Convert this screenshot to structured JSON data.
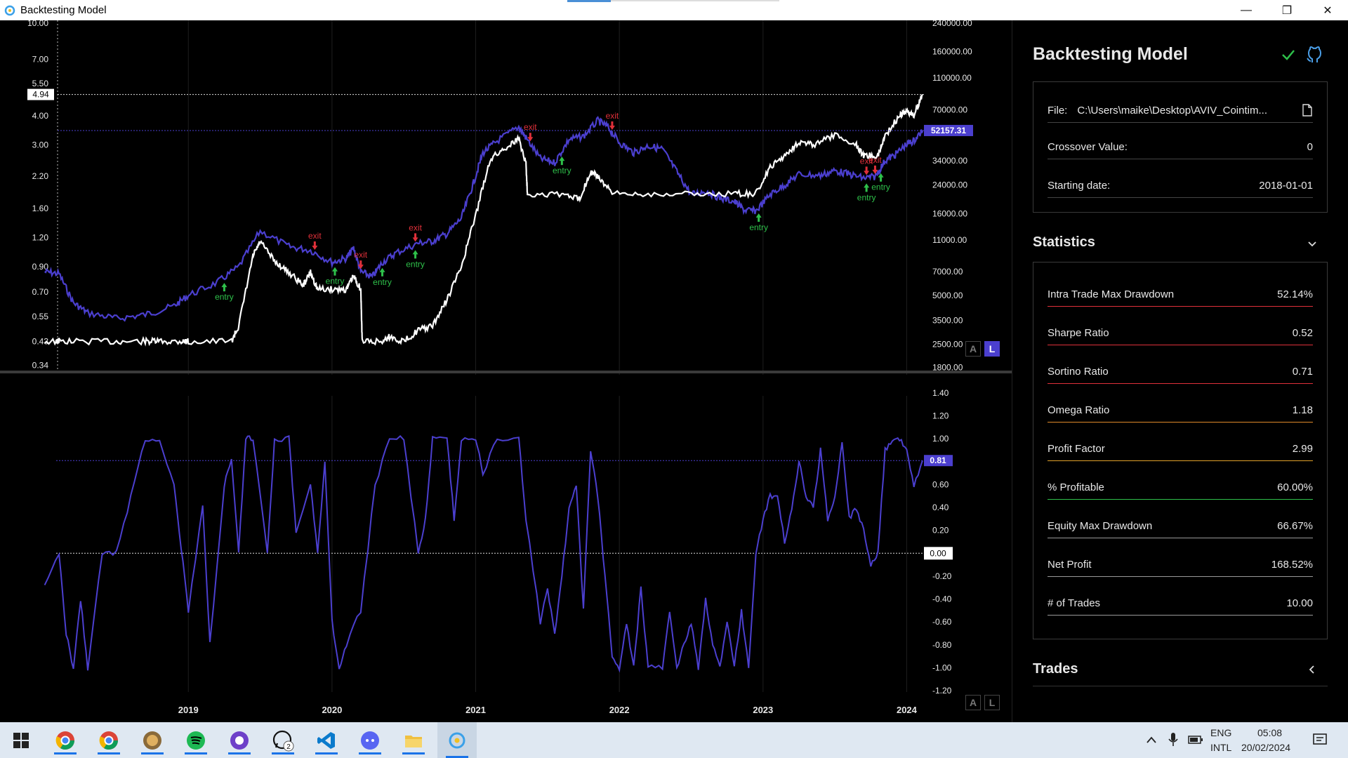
{
  "window": {
    "title": "Backtesting Model",
    "minimize": "—",
    "restore": "❐",
    "close": "✕"
  },
  "chart_data": {
    "type": "line",
    "x_ticks": [
      "2019",
      "2020",
      "2021",
      "2022",
      "2023",
      "2024"
    ],
    "top_left_axis": [
      "10.00",
      "7.00",
      "5.50",
      "4.00",
      "3.00",
      "2.20",
      "1.60",
      "1.20",
      "0.90",
      "0.70",
      "0.55",
      "0.43",
      "0.34"
    ],
    "top_left_marker": "4.94",
    "top_right_axis": [
      "240000.00",
      "160000.00",
      "110000.00",
      "70000.00",
      "34000.00",
      "24000.00",
      "16000.00",
      "11000.00",
      "7000.00",
      "5000.00",
      "3500.00",
      "2500.00",
      "1800.00"
    ],
    "top_right_marker": "52157.31",
    "bottom_axis": [
      "1.40",
      "1.20",
      "1.00",
      "0.80",
      "0.60",
      "0.40",
      "0.20",
      "0.00",
      "-0.20",
      "-0.40",
      "-0.60",
      "-0.80",
      "-1.00",
      "-1.20"
    ],
    "bottom_marker": "0.81",
    "bottom_zero_marker": "0.00",
    "price_series": {
      "name": "Price",
      "color": "#4b3fcf",
      "points": [
        [
          2018.0,
          7000
        ],
        [
          2018.1,
          6800
        ],
        [
          2018.2,
          4500
        ],
        [
          2018.3,
          3900
        ],
        [
          2018.5,
          3600
        ],
        [
          2018.7,
          3800
        ],
        [
          2018.9,
          4300
        ],
        [
          2019.0,
          5000
        ],
        [
          2019.2,
          6000
        ],
        [
          2019.35,
          7500
        ],
        [
          2019.5,
          12500
        ],
        [
          2019.7,
          10000
        ],
        [
          2019.85,
          9500
        ],
        [
          2020.0,
          8000
        ],
        [
          2020.1,
          8500
        ],
        [
          2020.15,
          9800
        ],
        [
          2020.2,
          7000
        ],
        [
          2020.28,
          6500
        ],
        [
          2020.35,
          8000
        ],
        [
          2020.45,
          9200
        ],
        [
          2020.6,
          10500
        ],
        [
          2020.7,
          10800
        ],
        [
          2020.8,
          12000
        ],
        [
          2020.9,
          15000
        ],
        [
          2020.98,
          24000
        ],
        [
          2021.05,
          38000
        ],
        [
          2021.15,
          45000
        ],
        [
          2021.3,
          55000
        ],
        [
          2021.35,
          47000
        ],
        [
          2021.45,
          35000
        ],
        [
          2021.55,
          33000
        ],
        [
          2021.65,
          46000
        ],
        [
          2021.75,
          48000
        ],
        [
          2021.85,
          60000
        ],
        [
          2021.92,
          55000
        ],
        [
          2022.0,
          44000
        ],
        [
          2022.1,
          38000
        ],
        [
          2022.2,
          42000
        ],
        [
          2022.3,
          40000
        ],
        [
          2022.4,
          29000
        ],
        [
          2022.5,
          21000
        ],
        [
          2022.6,
          22000
        ],
        [
          2022.7,
          20000
        ],
        [
          2022.8,
          19000
        ],
        [
          2022.87,
          16800
        ],
        [
          2022.95,
          16600
        ],
        [
          2023.05,
          21000
        ],
        [
          2023.15,
          24000
        ],
        [
          2023.25,
          28000
        ],
        [
          2023.4,
          27500
        ],
        [
          2023.5,
          29500
        ],
        [
          2023.6,
          28000
        ],
        [
          2023.7,
          26500
        ],
        [
          2023.78,
          27000
        ],
        [
          2023.85,
          34000
        ],
        [
          2023.92,
          37000
        ],
        [
          2024.0,
          43000
        ],
        [
          2024.05,
          45000
        ],
        [
          2024.11,
          52157
        ]
      ]
    },
    "equity_series": {
      "name": "Equity",
      "color": "#ffffff",
      "points": [
        [
          2018.0,
          0.43
        ],
        [
          2018.2,
          0.43
        ],
        [
          2018.5,
          0.43
        ],
        [
          2018.7,
          0.43
        ],
        [
          2018.8,
          0.43
        ],
        [
          2018.95,
          0.43
        ],
        [
          2019.0,
          0.43
        ],
        [
          2019.3,
          0.43
        ],
        [
          2019.35,
          0.5
        ],
        [
          2019.45,
          1.0
        ],
        [
          2019.5,
          1.15
        ],
        [
          2019.6,
          0.95
        ],
        [
          2019.7,
          0.85
        ],
        [
          2019.8,
          0.75
        ],
        [
          2019.85,
          0.85
        ],
        [
          2019.9,
          0.72
        ],
        [
          2020.0,
          0.72
        ],
        [
          2020.1,
          0.72
        ],
        [
          2020.15,
          0.82
        ],
        [
          2020.2,
          0.72
        ],
        [
          2020.21,
          0.43
        ],
        [
          2020.35,
          0.43
        ],
        [
          2020.4,
          0.45
        ],
        [
          2020.5,
          0.43
        ],
        [
          2020.6,
          0.48
        ],
        [
          2020.7,
          0.5
        ],
        [
          2020.8,
          0.65
        ],
        [
          2020.9,
          0.9
        ],
        [
          2021.0,
          1.5
        ],
        [
          2021.1,
          2.6
        ],
        [
          2021.2,
          2.9
        ],
        [
          2021.3,
          3.2
        ],
        [
          2021.35,
          2.5
        ],
        [
          2021.36,
          1.85
        ],
        [
          2021.6,
          1.85
        ],
        [
          2021.72,
          1.75
        ],
        [
          2021.8,
          2.3
        ],
        [
          2021.85,
          2.2
        ],
        [
          2021.95,
          1.85
        ],
        [
          2022.2,
          1.85
        ],
        [
          2022.5,
          1.85
        ],
        [
          2022.8,
          1.85
        ],
        [
          2022.95,
          1.85
        ],
        [
          2023.05,
          2.4
        ],
        [
          2023.15,
          2.7
        ],
        [
          2023.25,
          3.1
        ],
        [
          2023.35,
          3.0
        ],
        [
          2023.5,
          3.3
        ],
        [
          2023.65,
          3.0
        ],
        [
          2023.7,
          2.7
        ],
        [
          2023.8,
          2.7
        ],
        [
          2023.85,
          3.3
        ],
        [
          2023.95,
          4.0
        ],
        [
          2024.0,
          4.2
        ],
        [
          2024.05,
          4.0
        ],
        [
          2024.11,
          4.94
        ]
      ]
    },
    "signals": [
      {
        "type": "entry",
        "x": 2019.25,
        "label": "entry"
      },
      {
        "type": "exit",
        "x": 2019.88,
        "label": "exit"
      },
      {
        "type": "entry",
        "x": 2020.02,
        "label": "entry"
      },
      {
        "type": "exit",
        "x": 2020.2,
        "label": "exit"
      },
      {
        "type": "entry",
        "x": 2020.35,
        "label": "entry"
      },
      {
        "type": "exit",
        "x": 2020.58,
        "label": "exit"
      },
      {
        "type": "entry",
        "x": 2020.58,
        "label": "entry"
      },
      {
        "type": "exit",
        "x": 2021.38,
        "label": "exit"
      },
      {
        "type": "entry",
        "x": 2021.6,
        "label": "entry"
      },
      {
        "type": "exit",
        "x": 2021.95,
        "label": "exit"
      },
      {
        "type": "entry",
        "x": 2022.97,
        "label": "entry"
      },
      {
        "type": "exit",
        "x": 2023.72,
        "label": "exit"
      },
      {
        "type": "entry",
        "x": 2023.72,
        "label": "entry"
      },
      {
        "type": "exit",
        "x": 2023.78,
        "label": "exit"
      },
      {
        "type": "entry",
        "x": 2023.82,
        "label": "entry"
      }
    ],
    "indicator_series": {
      "name": "Crossover indicator",
      "color": "#4b3fcf",
      "points": [
        [
          2018.0,
          -0.3
        ],
        [
          2018.1,
          0.0
        ],
        [
          2018.15,
          -0.7
        ],
        [
          2018.2,
          -1.0
        ],
        [
          2018.25,
          -0.4
        ],
        [
          2018.3,
          -1.0
        ],
        [
          2018.4,
          0.0
        ],
        [
          2018.5,
          0.0
        ],
        [
          2018.6,
          0.5
        ],
        [
          2018.7,
          1.0
        ],
        [
          2018.8,
          1.0
        ],
        [
          2018.9,
          0.6
        ],
        [
          2018.95,
          0.05
        ],
        [
          2019.0,
          -0.5
        ],
        [
          2019.1,
          0.4
        ],
        [
          2019.15,
          -0.8
        ],
        [
          2019.25,
          0.6
        ],
        [
          2019.3,
          0.8
        ],
        [
          2019.35,
          0.0
        ],
        [
          2019.4,
          1.0
        ],
        [
          2019.45,
          1.0
        ],
        [
          2019.55,
          0.0
        ],
        [
          2019.6,
          1.0
        ],
        [
          2019.7,
          1.0
        ],
        [
          2019.75,
          0.2
        ],
        [
          2019.85,
          0.6
        ],
        [
          2019.9,
          0.0
        ],
        [
          2019.95,
          0.8
        ],
        [
          2020.0,
          -0.6
        ],
        [
          2020.05,
          -1.0
        ],
        [
          2020.1,
          -0.8
        ],
        [
          2020.2,
          -0.5
        ],
        [
          2020.3,
          0.6
        ],
        [
          2020.4,
          1.0
        ],
        [
          2020.5,
          1.0
        ],
        [
          2020.6,
          0.0
        ],
        [
          2020.65,
          0.3
        ],
        [
          2020.7,
          1.0
        ],
        [
          2020.8,
          1.0
        ],
        [
          2020.85,
          0.3
        ],
        [
          2020.9,
          1.0
        ],
        [
          2021.0,
          1.0
        ],
        [
          2021.05,
          0.7
        ],
        [
          2021.15,
          1.0
        ],
        [
          2021.3,
          1.0
        ],
        [
          2021.35,
          0.3
        ],
        [
          2021.45,
          -0.6
        ],
        [
          2021.5,
          -0.3
        ],
        [
          2021.55,
          -0.7
        ],
        [
          2021.6,
          -0.2
        ],
        [
          2021.65,
          0.4
        ],
        [
          2021.7,
          0.6
        ],
        [
          2021.75,
          -0.5
        ],
        [
          2021.8,
          0.9
        ],
        [
          2021.85,
          0.5
        ],
        [
          2021.9,
          -0.2
        ],
        [
          2021.95,
          -0.9
        ],
        [
          2022.0,
          -1.0
        ],
        [
          2022.05,
          -0.6
        ],
        [
          2022.1,
          -1.0
        ],
        [
          2022.15,
          -0.3
        ],
        [
          2022.2,
          -1.0
        ],
        [
          2022.3,
          -1.0
        ],
        [
          2022.35,
          -0.5
        ],
        [
          2022.4,
          -1.0
        ],
        [
          2022.45,
          -0.8
        ],
        [
          2022.5,
          -0.6
        ],
        [
          2022.55,
          -1.0
        ],
        [
          2022.6,
          -0.4
        ],
        [
          2022.65,
          -0.8
        ],
        [
          2022.7,
          -1.0
        ],
        [
          2022.75,
          -0.6
        ],
        [
          2022.8,
          -1.0
        ],
        [
          2022.85,
          -0.5
        ],
        [
          2022.9,
          -1.0
        ],
        [
          2022.95,
          0.0
        ],
        [
          2023.0,
          0.3
        ],
        [
          2023.05,
          0.5
        ],
        [
          2023.1,
          0.5
        ],
        [
          2023.15,
          0.1
        ],
        [
          2023.2,
          0.4
        ],
        [
          2023.25,
          0.8
        ],
        [
          2023.3,
          0.5
        ],
        [
          2023.35,
          0.4
        ],
        [
          2023.4,
          0.9
        ],
        [
          2023.45,
          0.3
        ],
        [
          2023.5,
          0.5
        ],
        [
          2023.55,
          0.95
        ],
        [
          2023.6,
          0.3
        ],
        [
          2023.65,
          0.4
        ],
        [
          2023.7,
          0.2
        ],
        [
          2023.75,
          -0.1
        ],
        [
          2023.8,
          0.0
        ],
        [
          2023.85,
          0.9
        ],
        [
          2023.9,
          1.0
        ],
        [
          2023.95,
          1.0
        ],
        [
          2024.0,
          0.9
        ],
        [
          2024.05,
          0.6
        ],
        [
          2024.11,
          0.81
        ]
      ]
    }
  },
  "panel": {
    "title": "Backtesting Model",
    "file_label": "File:",
    "file_value": "C:\\Users\\maike\\Desktop\\AVIV_Cointim...",
    "crossover_label": "Crossover Value:",
    "crossover_value": "0",
    "start_label": "Starting date:",
    "start_value": "2018-01-01",
    "statistics_title": "Statistics",
    "stats": [
      {
        "label": "Intra Trade Max Drawdown",
        "value": "52.14%",
        "color": "#e0303a"
      },
      {
        "label": "Sharpe Ratio",
        "value": "0.52",
        "color": "#e0303a"
      },
      {
        "label": "Sortino Ratio",
        "value": "0.71",
        "color": "#e0303a"
      },
      {
        "label": "Omega Ratio",
        "value": "1.18",
        "color": "#e08a2a"
      },
      {
        "label": "Profit Factor",
        "value": "2.99",
        "color": "#e0a02a"
      },
      {
        "label": "% Profitable",
        "value": "60.00%",
        "color": "#2ec04a"
      },
      {
        "label": "Equity Max Drawdown",
        "value": "66.67%",
        "color": "#999999"
      },
      {
        "label": "Net Profit",
        "value": "168.52%",
        "color": "#999999"
      },
      {
        "label": "# of Trades",
        "value": "10.00",
        "color": "#999999"
      }
    ],
    "trades_title": "Trades"
  },
  "chart_controls": {
    "a": "A",
    "l": "L"
  },
  "taskbar": {
    "badge": "2",
    "lang1": "ENG",
    "lang2": "INTL",
    "time": "05:08",
    "date": "20/02/2024"
  }
}
